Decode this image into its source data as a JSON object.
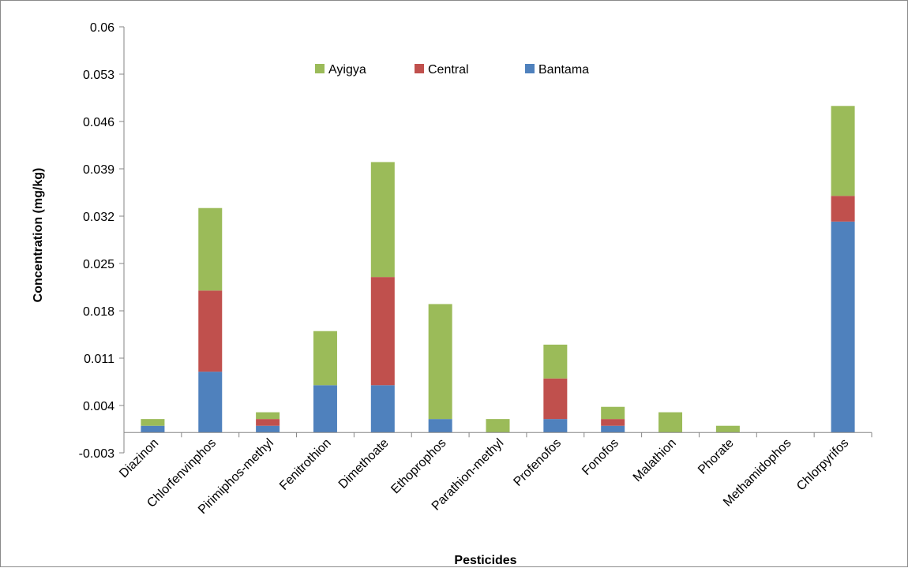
{
  "chart_data": {
    "type": "bar",
    "stacked": true,
    "categories": [
      "Diazinon",
      "Chlorfenvinphos",
      "Pirimiphos-methyl",
      "Fenitrothion",
      "Dimethoate",
      "Ethoprophos",
      "Parathion-methyl",
      "Profenofos",
      "Fonofos",
      "Malathion",
      "Phorate",
      "Methamidophos",
      "Chlorpyrifos"
    ],
    "series": [
      {
        "name": "Bantama",
        "color": "#4f81bd",
        "values": [
          0.001,
          0.009,
          0.001,
          0.007,
          0.007,
          0.002,
          0.0,
          0.002,
          0.001,
          0.0,
          0.0,
          0.0,
          0.0312
        ]
      },
      {
        "name": "Central",
        "color": "#c0504d",
        "values": [
          0.0,
          0.012,
          0.001,
          0.0,
          0.016,
          0.0,
          0.0,
          0.006,
          0.001,
          0.0,
          0.0,
          0.0,
          0.0038
        ]
      },
      {
        "name": "Ayigya",
        "color": "#9bbb59",
        "values": [
          0.001,
          0.0122,
          0.001,
          0.008,
          0.017,
          0.017,
          0.002,
          0.005,
          0.0018,
          0.003,
          0.001,
          0.0,
          0.0133
        ]
      }
    ],
    "title": "",
    "xlabel": "Pesticides",
    "ylabel": "Concentration (mg/kg)",
    "ylim": [
      -0.003,
      0.06
    ],
    "yticks": [
      "-0.003",
      "0.004",
      "0.011",
      "0.018",
      "0.025",
      "0.032",
      "0.039",
      "0.046",
      "0.053",
      "0.06"
    ],
    "legend_order": [
      "Ayigya",
      "Central",
      "Bantama"
    ],
    "legend": "top-center",
    "grid": false
  }
}
